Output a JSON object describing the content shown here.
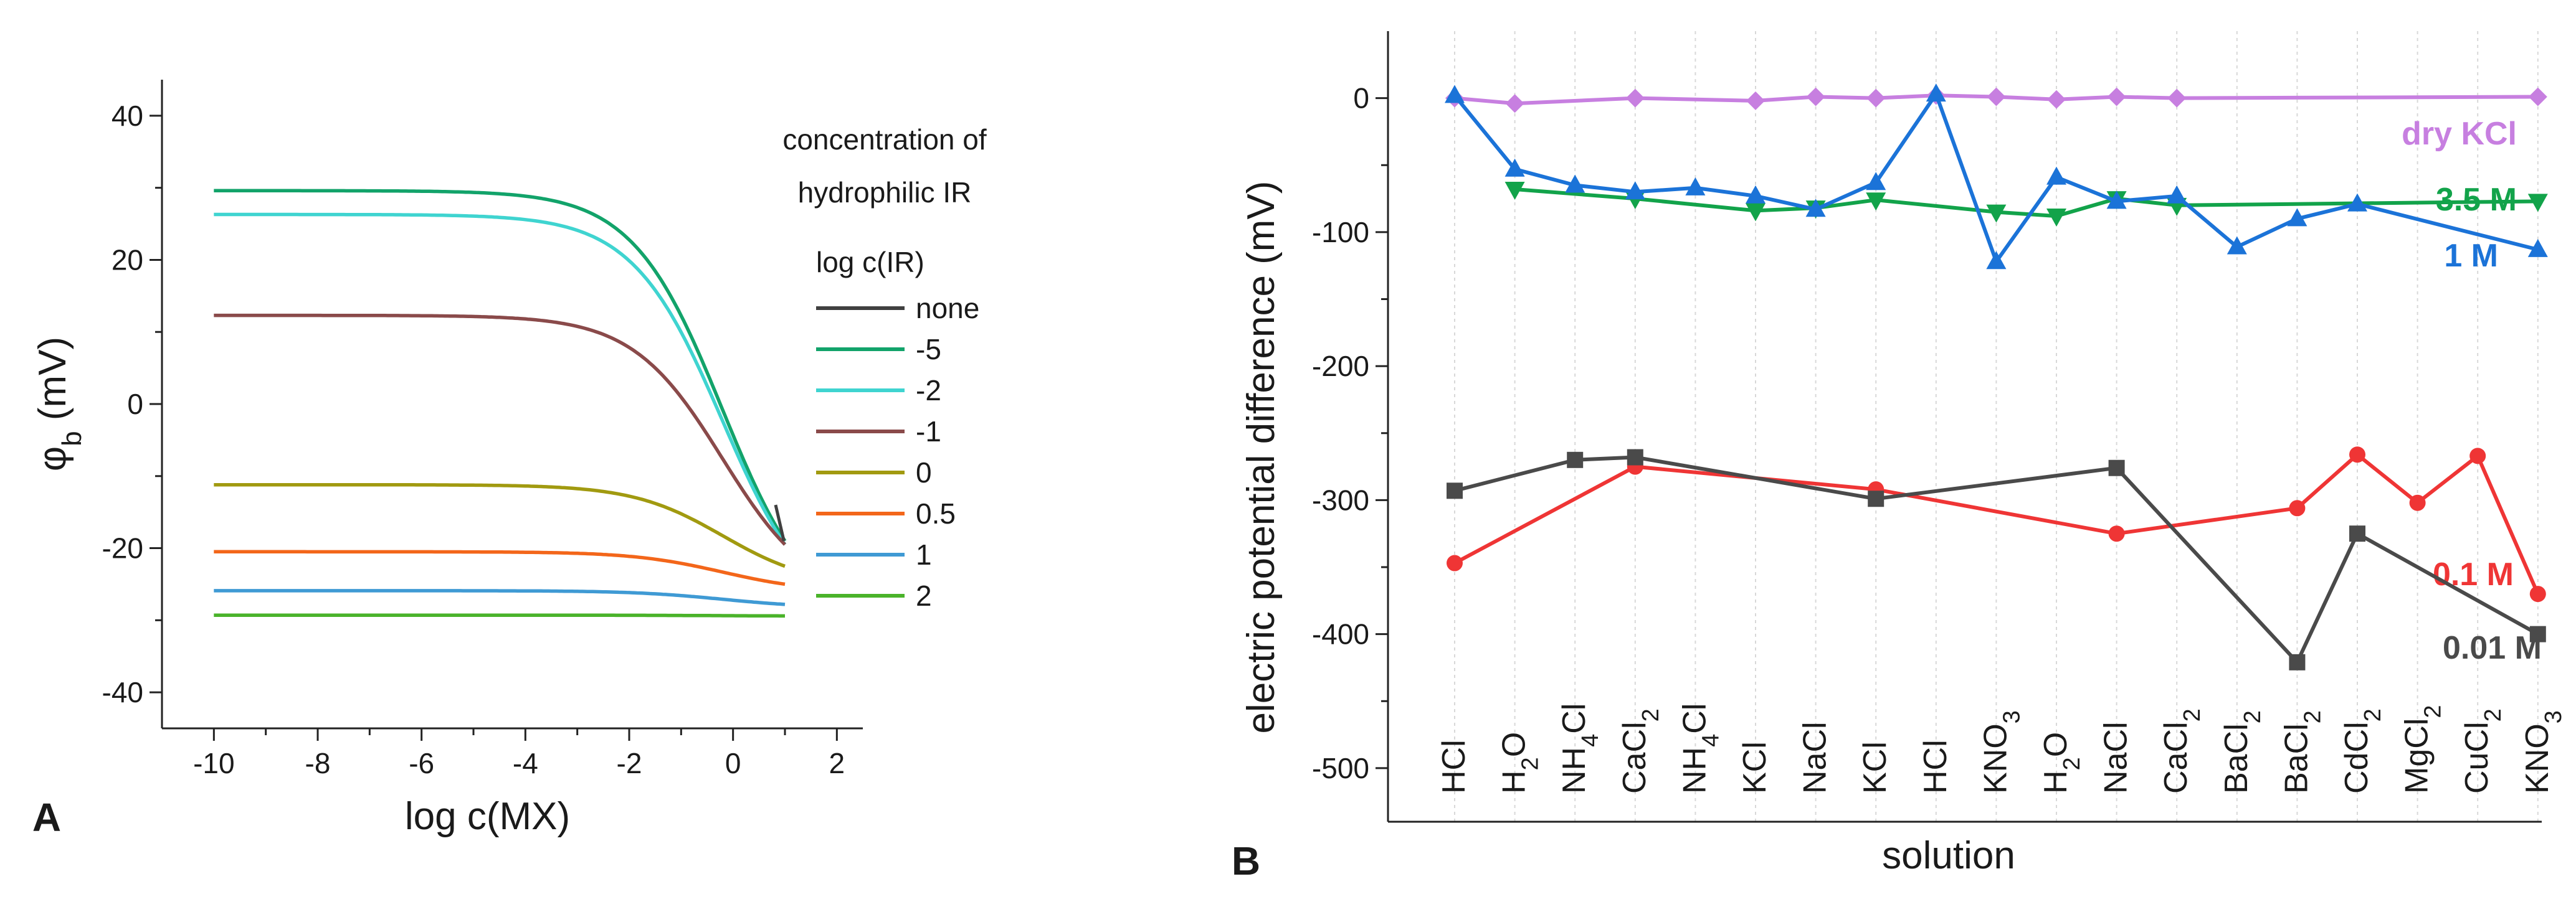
{
  "chart_data": [
    {
      "panel": "A",
      "type": "line",
      "xlabel": "log c(MX)",
      "ylabel_main": "φ",
      "ylabel_sub": "b",
      "ylabel_unit": " (mV)",
      "xlim": [
        -11,
        2.5
      ],
      "ylim": [
        -45,
        45
      ],
      "xticks": [
        -10,
        -8,
        -6,
        -4,
        -2,
        0,
        2
      ],
      "yticks": [
        -40,
        -20,
        0,
        20,
        40
      ],
      "legend_title_line1": "concentration of",
      "legend_title_line2": "hydrophilic IR",
      "legend_header": "log c(IR)",
      "series": [
        {
          "name": "none",
          "color": "#404040",
          "plateau": null,
          "end": -19,
          "ends_at_bundle": true
        },
        {
          "name": "-5",
          "color": "#12a36a",
          "plateau": 29.6,
          "end": -19
        },
        {
          "name": "-2",
          "color": "#3fd4d0",
          "plateau": 26.3,
          "end": -19.5
        },
        {
          "name": "-1",
          "color": "#8a4a4a",
          "plateau": 12.3,
          "end": -19.5
        },
        {
          "name": "0",
          "color": "#a19a10",
          "plateau": -11.2,
          "end": -22.5
        },
        {
          "name": "0.5",
          "color": "#f3661a",
          "plateau": -20.5,
          "end": -25
        },
        {
          "name": "1",
          "color": "#3f9ad4",
          "plateau": -25.9,
          "end": -27.8
        },
        {
          "name": "2",
          "color": "#4ab32a",
          "plateau": -29.3,
          "end": -29.4
        }
      ]
    },
    {
      "panel": "B",
      "type": "line",
      "xlabel": "solution",
      "ylabel": "electric potential difference (mV)",
      "ylim": [
        -540,
        50
      ],
      "yticks": [
        0,
        -100,
        -200,
        -300,
        -400,
        -500
      ],
      "categories": [
        "HCl",
        "H2O",
        "NH4Cl",
        "CaCl2",
        "NH4Cl",
        "KCl",
        "NaCl",
        "KCl",
        "HCl",
        "KNO3",
        "H2O",
        "NaCl",
        "CaCl2",
        "BaCl2",
        "BaCl2",
        "CdCl2",
        "MgCl2",
        "CuCl2",
        "KNO3"
      ],
      "category_parts": [
        [
          "HCl",
          ""
        ],
        [
          "H",
          "2",
          "O"
        ],
        [
          "NH",
          "4",
          "Cl"
        ],
        [
          "CaCl",
          "2"
        ],
        [
          "NH",
          "4",
          "Cl"
        ],
        [
          "KCl",
          ""
        ],
        [
          "NaCl",
          ""
        ],
        [
          "KCl",
          ""
        ],
        [
          "HCl",
          ""
        ],
        [
          "KNO",
          "3"
        ],
        [
          "H",
          "2",
          "O"
        ],
        [
          "NaCl",
          ""
        ],
        [
          "CaCl",
          "2"
        ],
        [
          "BaCl",
          "2"
        ],
        [
          "BaCl",
          "2"
        ],
        [
          "CdCl",
          "2"
        ],
        [
          "MgCl",
          "2"
        ],
        [
          "CuCl",
          "2"
        ],
        [
          "KNO",
          "3"
        ]
      ],
      "series": [
        {
          "name": "dry KCl",
          "color": "#c77fe0",
          "marker": "diamond",
          "x": [
            0,
            1,
            3,
            5,
            6,
            7,
            8,
            9,
            10,
            11,
            12,
            18
          ],
          "values": [
            0,
            -4,
            0,
            -2,
            1,
            0,
            2,
            1,
            -1,
            1,
            0,
            1
          ]
        },
        {
          "name": "3.5 M",
          "color": "#12a34a",
          "marker": "triangle-down",
          "x": [
            1,
            3,
            5,
            6,
            7,
            9,
            10,
            11,
            12,
            18
          ],
          "values": [
            -68,
            -75,
            -84,
            -82,
            -76,
            -85,
            -88,
            -75,
            -80,
            -77
          ]
        },
        {
          "name": "1 M",
          "color": "#1b73d8",
          "marker": "triangle-up",
          "x": [
            0,
            1,
            2,
            3,
            4,
            5,
            6,
            7,
            8,
            9,
            10,
            11,
            12,
            13,
            14,
            15,
            18
          ],
          "values": [
            2,
            -53,
            -65,
            -70,
            -67,
            -73,
            -83,
            -63,
            3,
            -122,
            -59,
            -77,
            -73,
            -111,
            -90,
            -79,
            -113
          ]
        },
        {
          "name": "0.1 M",
          "color": "#ef3535",
          "marker": "circle",
          "x": [
            0,
            3,
            7,
            11,
            14,
            15,
            16,
            17,
            18
          ],
          "values": [
            -347,
            -275,
            -292,
            -325,
            -306,
            -266,
            -302,
            -267,
            -370
          ]
        },
        {
          "name": "0.01 M",
          "color": "#4a4a4a",
          "marker": "square",
          "x": [
            0,
            2,
            3,
            7,
            11,
            14,
            15,
            18
          ],
          "values": [
            -293,
            -270,
            -268,
            -299,
            -276,
            -421,
            -325,
            -400
          ]
        }
      ]
    }
  ]
}
